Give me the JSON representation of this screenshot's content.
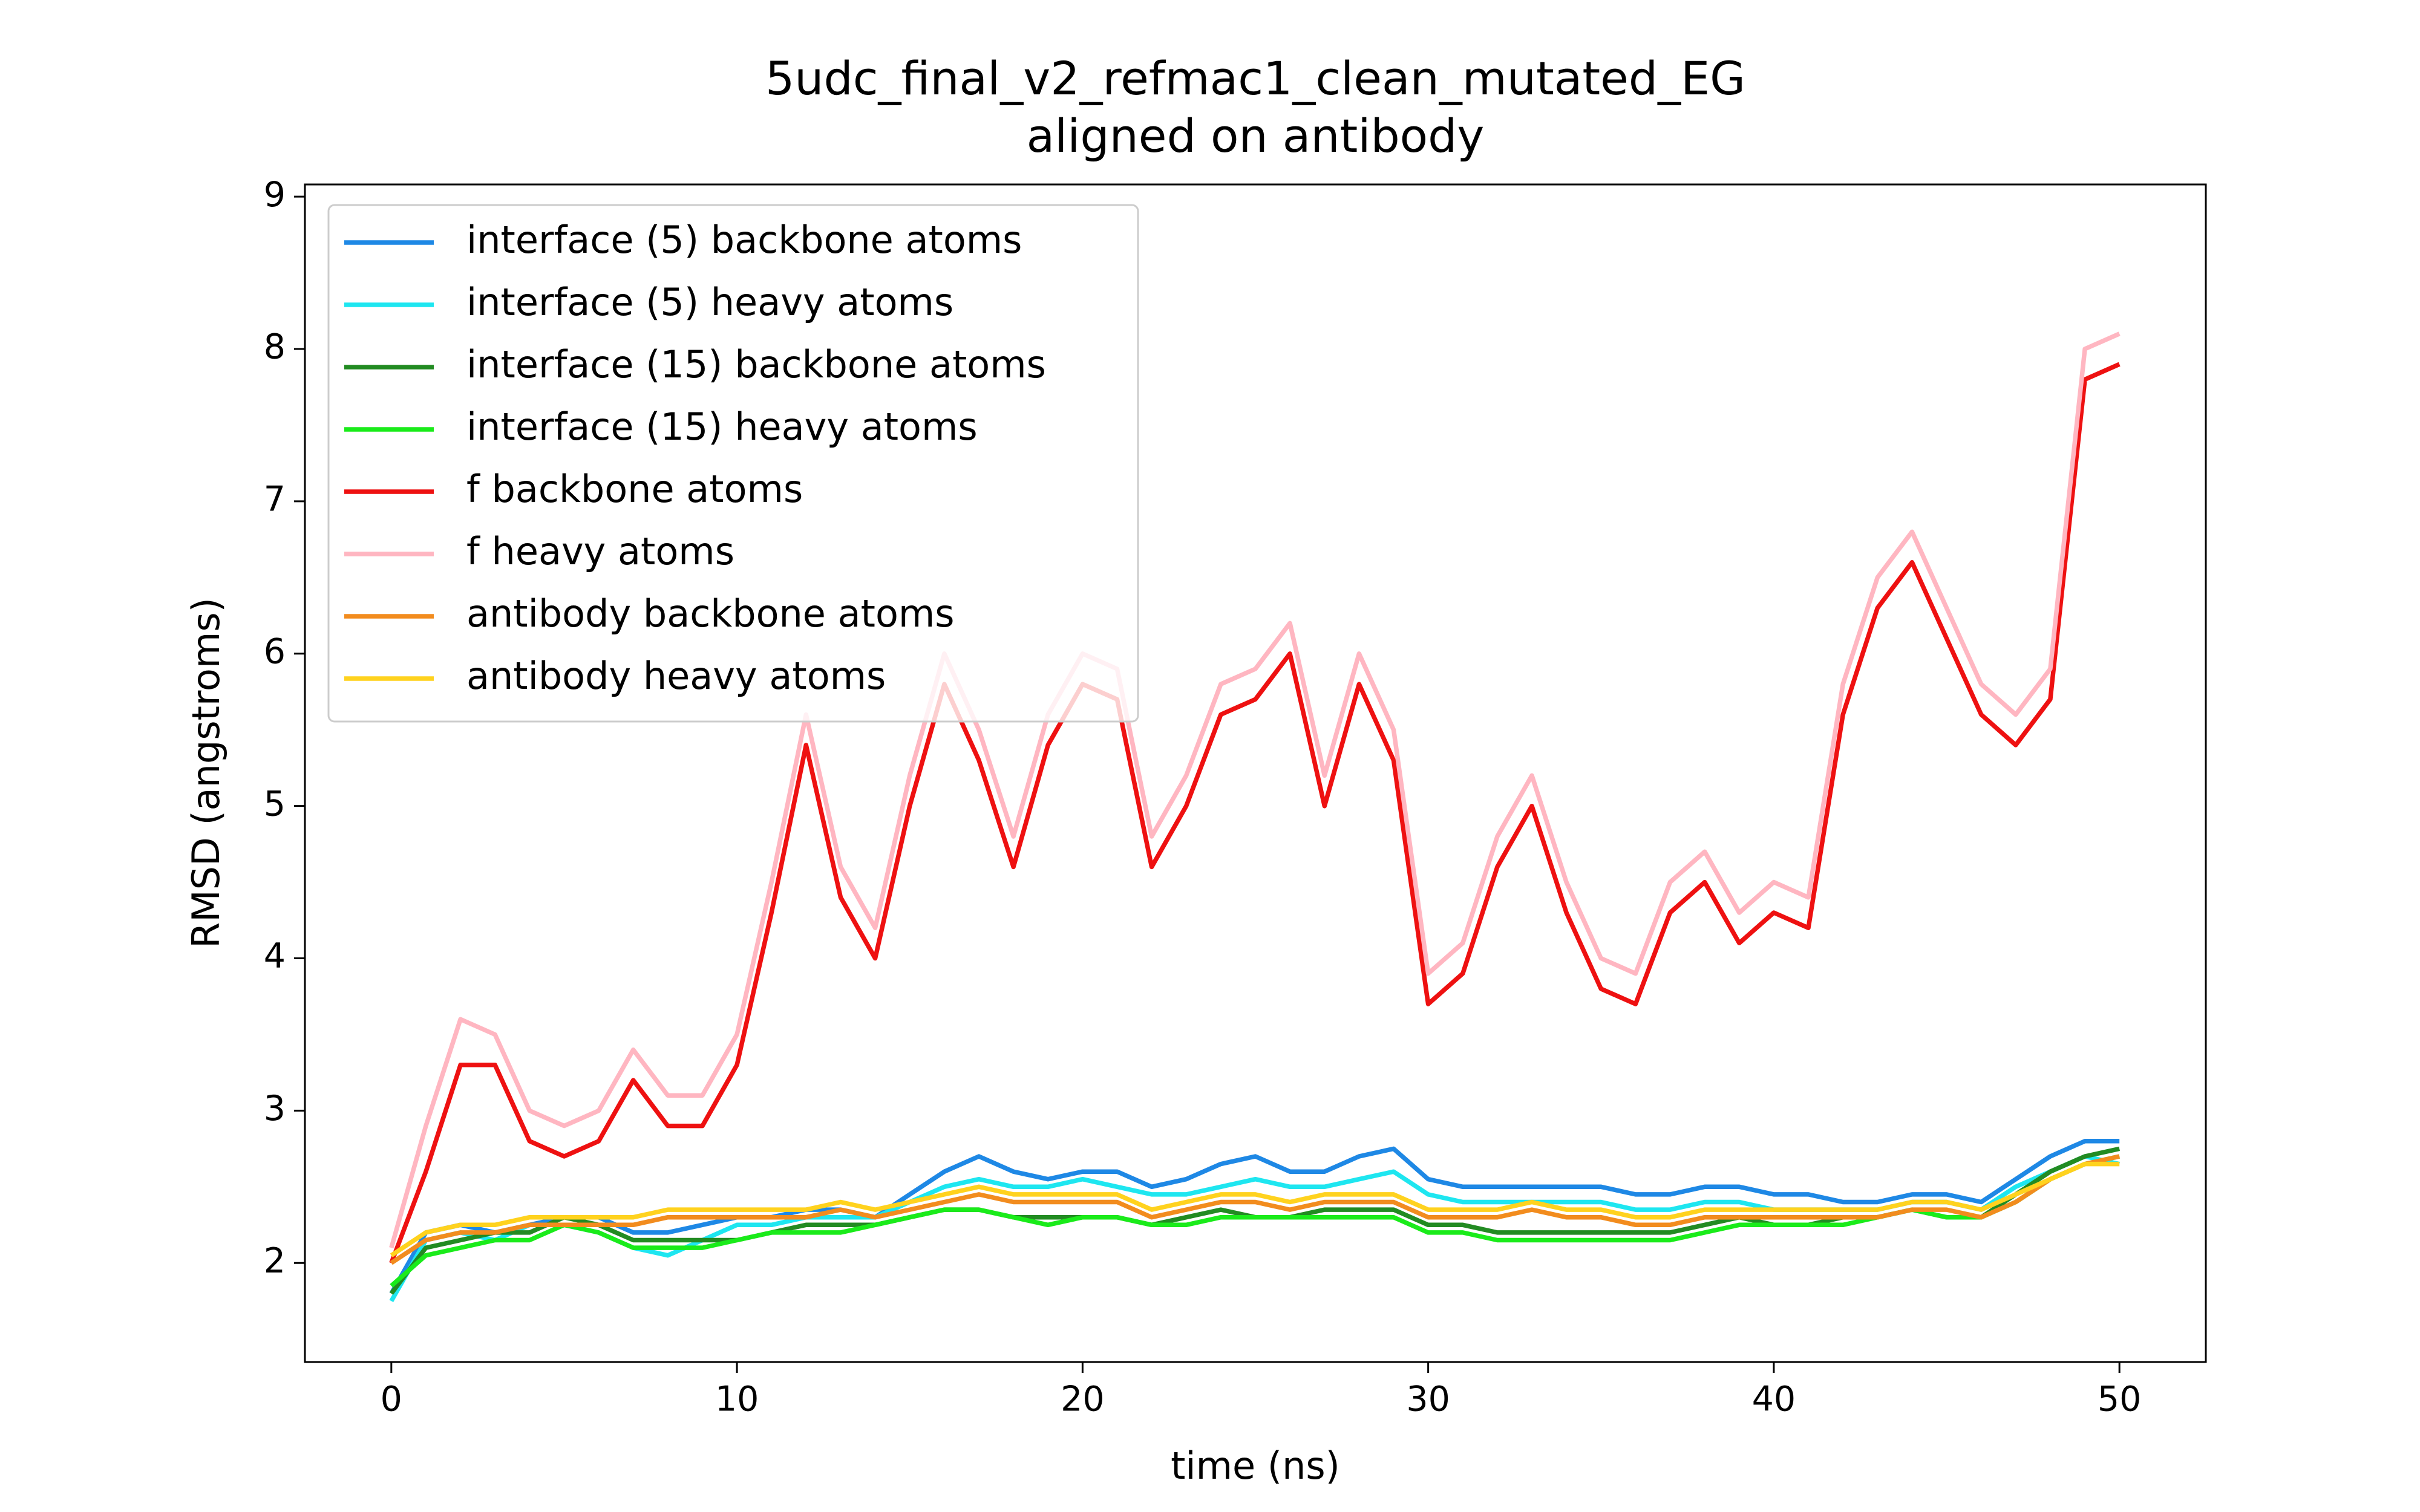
{
  "chart_data": {
    "type": "line",
    "title": "5udc_final_v2_refmac1_clean_mutated_EG",
    "subtitle": "aligned on antibody",
    "xlabel": "time (ns)",
    "ylabel": "RMSD (angstroms)",
    "x": [
      0,
      1,
      2,
      3,
      4,
      5,
      6,
      7,
      8,
      9,
      10,
      11,
      12,
      13,
      14,
      15,
      16,
      17,
      18,
      19,
      20,
      21,
      22,
      23,
      24,
      25,
      26,
      27,
      28,
      29,
      30,
      31,
      32,
      33,
      34,
      35,
      36,
      37,
      38,
      39,
      40,
      41,
      42,
      43,
      44,
      45,
      46,
      47,
      48,
      49,
      50
    ],
    "xlim": [
      -2.5,
      52.5
    ],
    "xticks": [
      0,
      10,
      20,
      30,
      40,
      50
    ],
    "ylim": [
      1.35,
      9.08
    ],
    "yticks": [
      2,
      3,
      4,
      5,
      6,
      7,
      8,
      9
    ],
    "legend": "upper left",
    "grid": false,
    "series": [
      {
        "name": "interface (5) backbone atoms",
        "color": "#1e88e5",
        "values": [
          1.8,
          2.2,
          2.25,
          2.2,
          2.25,
          2.3,
          2.3,
          2.2,
          2.2,
          2.25,
          2.3,
          2.3,
          2.35,
          2.35,
          2.3,
          2.45,
          2.6,
          2.7,
          2.6,
          2.55,
          2.6,
          2.6,
          2.5,
          2.55,
          2.65,
          2.7,
          2.6,
          2.6,
          2.7,
          2.75,
          2.55,
          2.5,
          2.5,
          2.5,
          2.5,
          2.5,
          2.45,
          2.45,
          2.5,
          2.5,
          2.45,
          2.45,
          2.4,
          2.4,
          2.45,
          2.45,
          2.4,
          2.55,
          2.7,
          2.8,
          2.8
        ]
      },
      {
        "name": "interface (5) heavy atoms",
        "color": "#1ee6f0",
        "values": [
          1.75,
          2.15,
          2.2,
          2.15,
          2.25,
          2.25,
          2.2,
          2.1,
          2.05,
          2.15,
          2.25,
          2.25,
          2.3,
          2.3,
          2.3,
          2.4,
          2.5,
          2.55,
          2.5,
          2.5,
          2.55,
          2.5,
          2.45,
          2.45,
          2.5,
          2.55,
          2.5,
          2.5,
          2.55,
          2.6,
          2.45,
          2.4,
          2.4,
          2.4,
          2.4,
          2.4,
          2.35,
          2.35,
          2.4,
          2.4,
          2.35,
          2.35,
          2.35,
          2.35,
          2.4,
          2.4,
          2.35,
          2.5,
          2.6,
          2.7,
          2.65
        ]
      },
      {
        "name": "interface (15) backbone atoms",
        "color": "#228b22",
        "values": [
          1.8,
          2.1,
          2.15,
          2.2,
          2.2,
          2.3,
          2.25,
          2.15,
          2.15,
          2.15,
          2.15,
          2.2,
          2.25,
          2.25,
          2.25,
          2.3,
          2.35,
          2.35,
          2.3,
          2.3,
          2.3,
          2.3,
          2.25,
          2.3,
          2.35,
          2.3,
          2.3,
          2.35,
          2.35,
          2.35,
          2.25,
          2.25,
          2.2,
          2.2,
          2.2,
          2.2,
          2.2,
          2.2,
          2.25,
          2.3,
          2.25,
          2.25,
          2.3,
          2.3,
          2.35,
          2.3,
          2.3,
          2.45,
          2.6,
          2.7,
          2.75
        ]
      },
      {
        "name": "interface (15) heavy atoms",
        "color": "#1aeb1a",
        "values": [
          1.85,
          2.05,
          2.1,
          2.15,
          2.15,
          2.25,
          2.2,
          2.1,
          2.1,
          2.1,
          2.15,
          2.2,
          2.2,
          2.2,
          2.25,
          2.3,
          2.35,
          2.35,
          2.3,
          2.25,
          2.3,
          2.3,
          2.25,
          2.25,
          2.3,
          2.3,
          2.3,
          2.3,
          2.3,
          2.3,
          2.2,
          2.2,
          2.15,
          2.15,
          2.15,
          2.15,
          2.15,
          2.15,
          2.2,
          2.25,
          2.25,
          2.25,
          2.25,
          2.3,
          2.35,
          2.3,
          2.3,
          2.4,
          2.55,
          2.65,
          2.7
        ]
      },
      {
        "name": "f backbone atoms",
        "color": "#ee1111",
        "values": [
          2.0,
          2.6,
          3.3,
          3.3,
          2.8,
          2.7,
          2.8,
          3.2,
          2.9,
          2.9,
          3.3,
          4.3,
          5.4,
          4.4,
          4.0,
          5.0,
          5.8,
          5.3,
          4.6,
          5.4,
          5.8,
          5.7,
          4.6,
          5.0,
          5.6,
          5.7,
          6.0,
          5.0,
          5.8,
          5.3,
          3.7,
          3.9,
          4.6,
          5.0,
          4.3,
          3.8,
          3.7,
          4.3,
          4.5,
          4.1,
          4.3,
          4.2,
          5.6,
          6.3,
          6.6,
          6.1,
          5.6,
          5.4,
          5.7,
          7.8,
          7.9
        ]
      },
      {
        "name": "f heavy atoms",
        "color": "#ffb6c1",
        "values": [
          2.1,
          2.9,
          3.6,
          3.5,
          3.0,
          2.9,
          3.0,
          3.4,
          3.1,
          3.1,
          3.5,
          4.5,
          5.6,
          4.6,
          4.2,
          5.2,
          6.0,
          5.5,
          4.8,
          5.6,
          6.0,
          5.9,
          4.8,
          5.2,
          5.8,
          5.9,
          6.2,
          5.2,
          6.0,
          5.5,
          3.9,
          4.1,
          4.8,
          5.2,
          4.5,
          4.0,
          3.9,
          4.5,
          4.7,
          4.3,
          4.5,
          4.4,
          5.8,
          6.5,
          6.8,
          6.3,
          5.8,
          5.6,
          5.9,
          8.0,
          8.1
        ]
      },
      {
        "name": "antibody backbone atoms",
        "color": "#f28c1e",
        "values": [
          2.0,
          2.15,
          2.2,
          2.2,
          2.25,
          2.25,
          2.25,
          2.25,
          2.3,
          2.3,
          2.3,
          2.3,
          2.3,
          2.35,
          2.3,
          2.35,
          2.4,
          2.45,
          2.4,
          2.4,
          2.4,
          2.4,
          2.3,
          2.35,
          2.4,
          2.4,
          2.35,
          2.4,
          2.4,
          2.4,
          2.3,
          2.3,
          2.3,
          2.35,
          2.3,
          2.3,
          2.25,
          2.25,
          2.3,
          2.3,
          2.3,
          2.3,
          2.3,
          2.3,
          2.35,
          2.35,
          2.3,
          2.4,
          2.55,
          2.65,
          2.7
        ]
      },
      {
        "name": "antibody heavy atoms",
        "color": "#ffd21e",
        "values": [
          2.05,
          2.2,
          2.25,
          2.25,
          2.3,
          2.3,
          2.3,
          2.3,
          2.35,
          2.35,
          2.35,
          2.35,
          2.35,
          2.4,
          2.35,
          2.4,
          2.45,
          2.5,
          2.45,
          2.45,
          2.45,
          2.45,
          2.35,
          2.4,
          2.45,
          2.45,
          2.4,
          2.45,
          2.45,
          2.45,
          2.35,
          2.35,
          2.35,
          2.4,
          2.35,
          2.35,
          2.3,
          2.3,
          2.35,
          2.35,
          2.35,
          2.35,
          2.35,
          2.35,
          2.4,
          2.4,
          2.35,
          2.45,
          2.55,
          2.65,
          2.65
        ]
      }
    ]
  }
}
